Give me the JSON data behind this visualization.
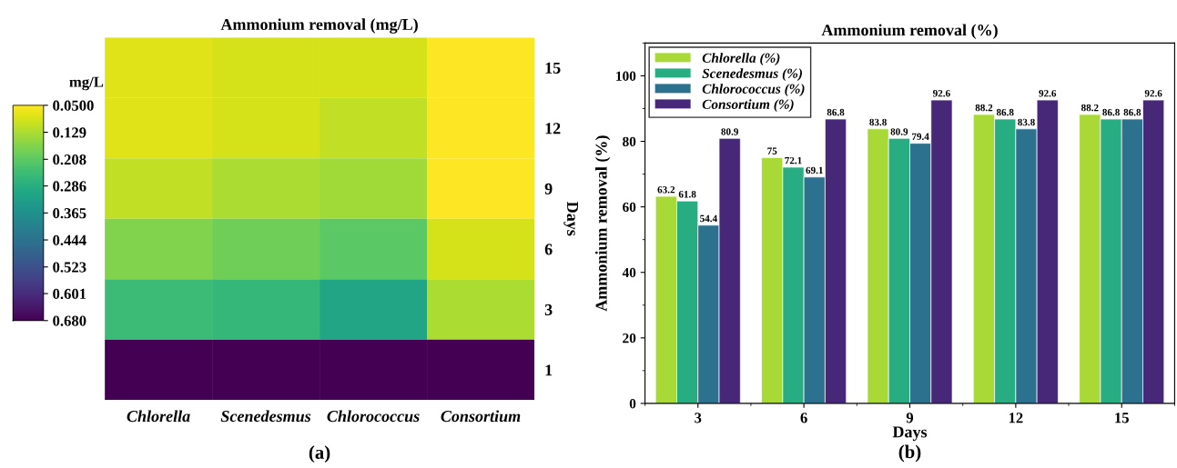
{
  "chart_data": [
    {
      "type": "heatmap",
      "title": "Ammonium removal (mg/L)",
      "ylabel": "Days",
      "clabel": "mg/L",
      "categories": [
        "Chlorella",
        "Scenedesmus",
        "Chlorococcus",
        "Consortium"
      ],
      "y_categories": [
        "15",
        "12",
        "9",
        "6",
        "3",
        "1"
      ],
      "cells": [
        [
          0.08,
          0.09,
          0.09,
          0.05
        ],
        [
          0.08,
          0.09,
          0.11,
          0.05
        ],
        [
          0.11,
          0.13,
          0.14,
          0.05
        ],
        [
          0.17,
          0.19,
          0.21,
          0.09
        ],
        [
          0.25,
          0.26,
          0.31,
          0.13
        ],
        [
          0.68,
          0.68,
          0.68,
          0.68
        ]
      ],
      "clim": [
        0.05,
        0.68
      ],
      "cticks": [
        {
          "value": 0.05,
          "label": "0.0500"
        },
        0.129,
        0.208,
        0.286,
        0.365,
        0.444,
        0.523,
        0.601,
        {
          "value": 0.68,
          "label": "0.680"
        }
      ],
      "annotations": [
        "(a)"
      ]
    },
    {
      "type": "bar",
      "title": "Ammonium removal (%)",
      "xlabel": "Days",
      "ylabel": "Ammonium removal (%)",
      "categories": [
        "3",
        "6",
        "9",
        "12",
        "15"
      ],
      "series": [
        {
          "name": "Chlorella (%)",
          "color": "#a8d936",
          "values": [
            63.2,
            75,
            83.8,
            88.2,
            88.2
          ]
        },
        {
          "name": "Scenedesmus (%)",
          "color": "#27ad81",
          "values": [
            61.8,
            72.1,
            80.9,
            86.8,
            86.8
          ]
        },
        {
          "name": "Chlorococcus (%)",
          "color": "#2c728e",
          "values": [
            54.4,
            69.1,
            79.4,
            83.8,
            86.8
          ]
        },
        {
          "name": "Consortium (%)",
          "color": "#472878",
          "values": [
            80.9,
            86.8,
            92.6,
            92.6,
            92.6
          ]
        }
      ],
      "ylim": [
        0,
        110
      ],
      "yticks": [
        0,
        20,
        40,
        60,
        80,
        100
      ],
      "data_labels": true,
      "legend": "top left",
      "grid": false,
      "annotations": [
        "(b)"
      ]
    }
  ]
}
